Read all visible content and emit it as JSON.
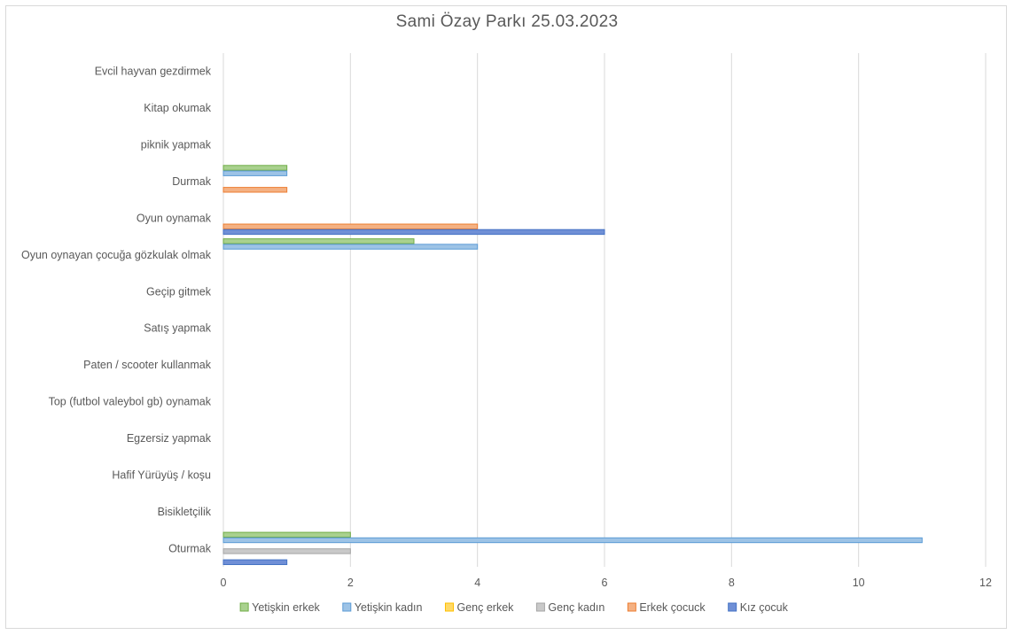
{
  "chart_data": {
    "type": "bar",
    "orientation": "horizontal",
    "title": "Sami Özay Parkı 25.03.2023",
    "xlabel": "",
    "ylabel": "",
    "xlim": [
      0,
      12
    ],
    "x_ticks": [
      0,
      2,
      4,
      6,
      8,
      10,
      12
    ],
    "grid": true,
    "legend_position": "bottom",
    "categories": [
      "Oturmak",
      "Bisikletçilik",
      "Hafif Yürüyüş / koşu",
      "Egzersiz yapmak",
      "Top (futbol valeybol  gb) oynamak",
      "Paten / scooter kullanmak",
      "Satış yapmak",
      "Geçip gitmek",
      "Oyun oynayan çocuğa gözkulak olmak",
      "Oyun oynamak",
      "Durmak",
      "piknik yapmak",
      "Kitap okumak",
      "Evcil hayvan gezdirmek"
    ],
    "series": [
      {
        "name": "Yetişkin erkek",
        "color": "#70ad47",
        "fill": "#a9d18e",
        "values": [
          2,
          0,
          0,
          0,
          0,
          0,
          0,
          0,
          3,
          0,
          1,
          0,
          0,
          0
        ]
      },
      {
        "name": "Yetişkin kadın",
        "color": "#5b9bd5",
        "fill": "#9dc3e6",
        "values": [
          11,
          0,
          0,
          0,
          0,
          0,
          0,
          0,
          4,
          0,
          1,
          0,
          0,
          0
        ]
      },
      {
        "name": "Genç erkek",
        "color": "#ffc000",
        "fill": "#ffd966",
        "values": [
          0,
          0,
          0,
          0,
          0,
          0,
          0,
          0,
          0,
          0,
          0,
          0,
          0,
          0
        ]
      },
      {
        "name": "Genç kadın",
        "color": "#a5a5a5",
        "fill": "#c9c9c9",
        "values": [
          2,
          0,
          0,
          0,
          0,
          0,
          0,
          0,
          0,
          0,
          0,
          0,
          0,
          0
        ]
      },
      {
        "name": "Erkek çocuck",
        "color": "#ed7d31",
        "fill": "#f4b183",
        "values": [
          0,
          0,
          0,
          0,
          0,
          0,
          0,
          0,
          0,
          4,
          1,
          0,
          0,
          0
        ]
      },
      {
        "name": "Kız çocuk",
        "color": "#4472c4",
        "fill": "#6f8fd6",
        "values": [
          1,
          0,
          0,
          0,
          0,
          0,
          0,
          0,
          0,
          6,
          0,
          0,
          0,
          0
        ]
      }
    ]
  }
}
